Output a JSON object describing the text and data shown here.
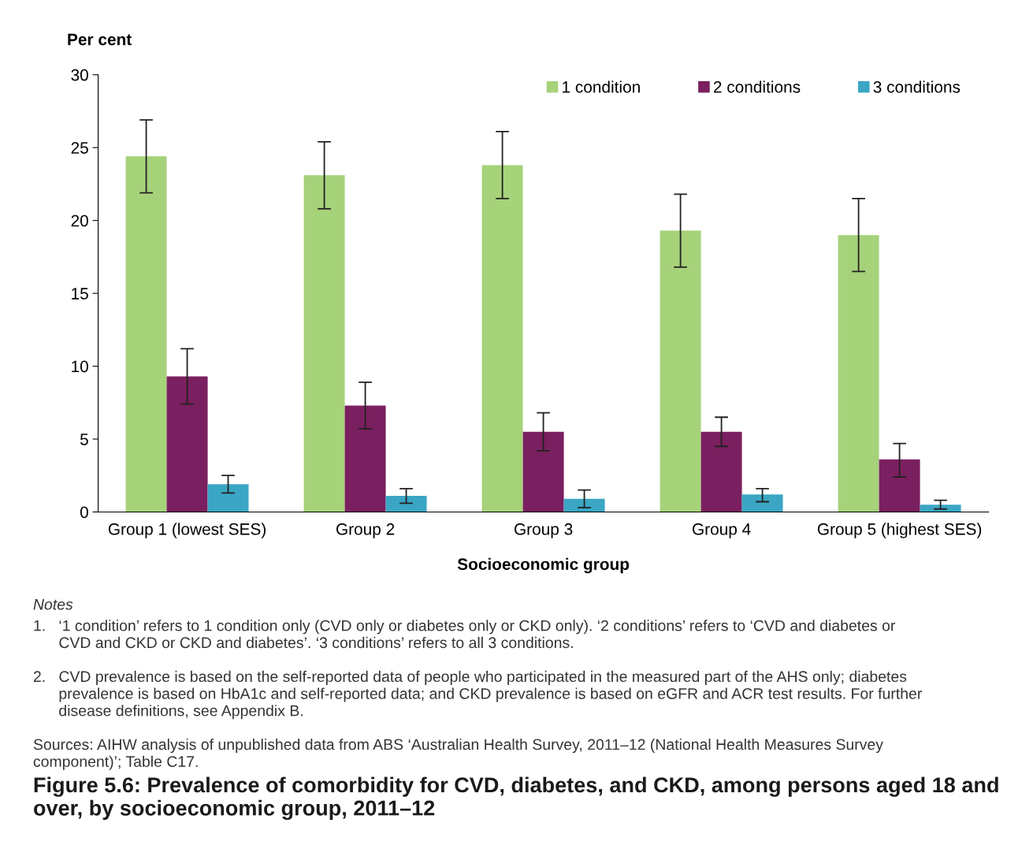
{
  "chart_data": {
    "type": "bar",
    "title": "Figure 5.6: Prevalence of comorbidity for CVD, diabetes, and CKD, among persons aged 18 and over, by socioeconomic group, 2011–12",
    "xlabel": "Socioeconomic group",
    "ylabel": "Per cent",
    "categories": [
      "Group 1 (lowest SES)",
      "Group 2",
      "Group 3",
      "Group 4",
      "Group 5 (highest SES)"
    ],
    "series": [
      {
        "name": "1 condition",
        "color": "#a6d27a",
        "values": [
          24.4,
          23.1,
          23.8,
          19.3,
          19.0
        ],
        "errors": [
          [
            21.9,
            26.9
          ],
          [
            20.8,
            25.4
          ],
          [
            21.5,
            26.1
          ],
          [
            16.8,
            21.8
          ],
          [
            16.5,
            21.5
          ]
        ]
      },
      {
        "name": "2 conditions",
        "color": "#7a1f5f",
        "values": [
          9.3,
          7.3,
          5.5,
          5.5,
          3.6
        ],
        "errors": [
          [
            7.4,
            11.2
          ],
          [
            5.7,
            8.9
          ],
          [
            4.2,
            6.8
          ],
          [
            4.5,
            6.5
          ],
          [
            2.4,
            4.7
          ]
        ]
      },
      {
        "name": "3 conditions",
        "color": "#3aa6c4",
        "values": [
          1.9,
          1.1,
          0.9,
          1.2,
          0.5
        ],
        "errors": [
          [
            1.3,
            2.5
          ],
          [
            0.6,
            1.6
          ],
          [
            0.3,
            1.5
          ],
          [
            0.7,
            1.6
          ],
          [
            0.2,
            0.8
          ]
        ]
      }
    ],
    "ylim": [
      0,
      30
    ],
    "yticks": [
      0,
      5,
      10,
      15,
      20,
      25,
      30
    ],
    "grid": false,
    "legend": "top right",
    "annotations": [
      "Notes",
      "1.   ‘1 condition’ refers to 1 condition only (CVD only or diabetes only or CKD only). ‘2 conditions’ refers to ‘CVD and diabetes or\n      CVD and CKD or CKD and diabetes’. ‘3 conditions’ refers to all 3 conditions.",
      "2.   CVD prevalence is based on the self-reported data of people who participated in the measured part of the AHS only; diabetes\n      prevalence is based on HbA1c and self-reported data; and CKD prevalence is based on eGFR and ACR test results. For further\n      disease definitions, see Appendix B.",
      "Sources: AIHW analysis of unpublished data from ABS ‘Australian Health Survey, 2011–12 (National Health Measures Survey\ncomponent)’; Table C17."
    ]
  }
}
